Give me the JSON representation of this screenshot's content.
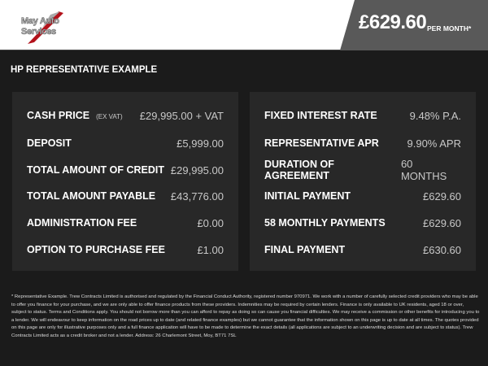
{
  "header": {
    "logo_text": [
      "May Auto",
      "Services"
    ],
    "monthly_price": "£629.60",
    "per_month_label": "PER MONTH*"
  },
  "section_title": "HP REPRESENTATIVE EXAMPLE",
  "left_panel": [
    {
      "label": "CASH PRICE",
      "sub": "(EX VAT)",
      "value": "£29,995.00 + VAT"
    },
    {
      "label": "DEPOSIT",
      "value": "£5,999.00"
    },
    {
      "label": "TOTAL AMOUNT OF CREDIT",
      "value": "£29,995.00"
    },
    {
      "label": "TOTAL AMOUNT PAYABLE",
      "value": "£43,776.00"
    },
    {
      "label": "ADMINISTRATION FEE",
      "value": "£0.00"
    },
    {
      "label": "OPTION TO PURCHASE FEE",
      "value": "£1.00"
    }
  ],
  "right_panel": [
    {
      "label": "FIXED INTEREST RATE",
      "value": "9.48% P.A."
    },
    {
      "label": "REPRESENTATIVE APR",
      "value": "9.90% APR"
    },
    {
      "label": "DURATION OF AGREEMENT",
      "value": "60 MONTHS"
    },
    {
      "label": "INITIAL PAYMENT",
      "value": "£629.60"
    },
    {
      "label": "58 MONTHLY PAYMENTS",
      "value": "£629.60"
    },
    {
      "label": "FINAL PAYMENT",
      "value": "£630.60"
    }
  ],
  "disclaimer": "* Representative Example. Trew Contracts Limited is authorised and regulated by the Financial Conduct Authority, registered number 970971. We work with a number of carefully selected credit providers who may be able to offer you finance for your purchase, and we are only able to offer finance products from these providers. Indemnities may be required by certain lenders. Finance is only available to UK residents, aged 18 or over, subject to status. Terms and Conditions apply. You should not borrow more than you can afford to repay as doing so can cause you financial difficulties. We may receive a commission or other benefits for introducing you to a lender. We will endeavour to keep information on the road prices up to date (and related finance examples) but we cannot guarantee that the information shown on this page is up to date at all times. The quotes provided on this page are only for illustrative purposes only and a full finance application will have to be made to determine the exact details (all applications are subject to an underwriting decision and are subject to status). Trew Contracts Limited acts as a credit broker and not a lender. Address: 26 Charlemont Street, Moy, BT71 7SL"
}
